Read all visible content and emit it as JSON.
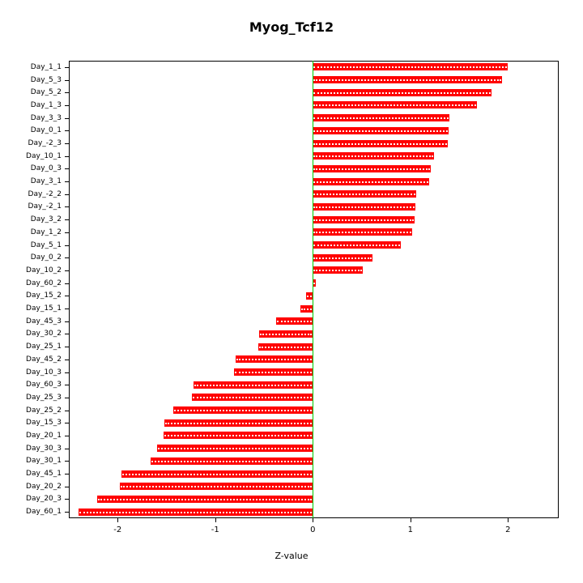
{
  "figure": {
    "background": "#ffffff",
    "axis_color": "#000000"
  },
  "chart_data": {
    "type": "bar",
    "orientation": "horizontal",
    "title": "Myog_Tcf12",
    "xlabel": "Z-value",
    "ylabel": "",
    "xlim": [
      -2.5,
      2.52
    ],
    "xticks": [
      -2,
      -1,
      0,
      1,
      2
    ],
    "grid": false,
    "legend": "none",
    "bar_color": "#ff0000",
    "bar_pattern": "white-dotted-centerline",
    "zero_line": {
      "x": 0,
      "color": "#00cc00"
    },
    "categories": [
      "Day_1_1",
      "Day_5_3",
      "Day_5_2",
      "Day_1_3",
      "Day_3_3",
      "Day_0_1",
      "Day_-2_3",
      "Day_10_1",
      "Day_0_3",
      "Day_3_1",
      "Day_-2_2",
      "Day_-2_1",
      "Day_3_2",
      "Day_1_2",
      "Day_5_1",
      "Day_0_2",
      "Day_10_2",
      "Day_60_2",
      "Day_15_2",
      "Day_15_1",
      "Day_45_3",
      "Day_30_2",
      "Day_25_1",
      "Day_45_2",
      "Day_10_3",
      "Day_60_3",
      "Day_25_3",
      "Day_25_2",
      "Day_15_3",
      "Day_20_1",
      "Day_30_3",
      "Day_30_1",
      "Day_45_1",
      "Day_20_2",
      "Day_20_3",
      "Day_60_1"
    ],
    "values": [
      2.0,
      1.94,
      1.83,
      1.68,
      1.4,
      1.39,
      1.38,
      1.24,
      1.21,
      1.19,
      1.06,
      1.05,
      1.04,
      1.02,
      0.9,
      0.61,
      0.51,
      0.03,
      -0.07,
      -0.13,
      -0.38,
      -0.55,
      -0.56,
      -0.79,
      -0.81,
      -1.22,
      -1.24,
      -1.43,
      -1.52,
      -1.53,
      -1.6,
      -1.66,
      -1.96,
      -1.98,
      -2.21,
      -2.4
    ]
  }
}
